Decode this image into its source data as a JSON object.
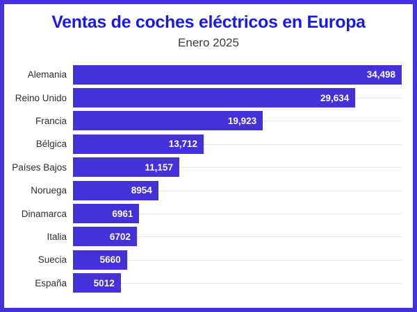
{
  "page": {
    "background_color": "#ffffff",
    "border_color": "#4431d8"
  },
  "header": {
    "title": "Ventas de coches eléctricos en Europa",
    "subtitle": "Enero 2025",
    "title_color": "#1a1ae8",
    "subtitle_color": "#3a3a3a"
  },
  "chart_data": {
    "type": "bar",
    "orientation": "horizontal",
    "title": "Ventas de coches eléctricos en Europa",
    "subtitle": "Enero 2025",
    "categories": [
      "Alemania",
      "Reino Unido",
      "Francia",
      "Bélgica",
      "Países Bajos",
      "Noruega",
      "Dinamarca",
      "Italia",
      "Suecia",
      "España"
    ],
    "values": [
      34498,
      29634,
      19923,
      13712,
      11157,
      8954,
      6961,
      6702,
      5660,
      5012
    ],
    "value_labels": [
      "34,498",
      "29,634",
      "19,923",
      "13,712",
      "11,157",
      "8954",
      "6961",
      "6702",
      "5660",
      "5012"
    ],
    "xlim": [
      0,
      34498
    ],
    "xlabel": "",
    "ylabel": "",
    "legend": "none",
    "grid": "light horizontal line at each category row",
    "bar_color": "#4431d8",
    "value_label_color": "#ffffff",
    "category_label_color": "#2e2e2e",
    "gridline_color": "#e8e8e8"
  }
}
